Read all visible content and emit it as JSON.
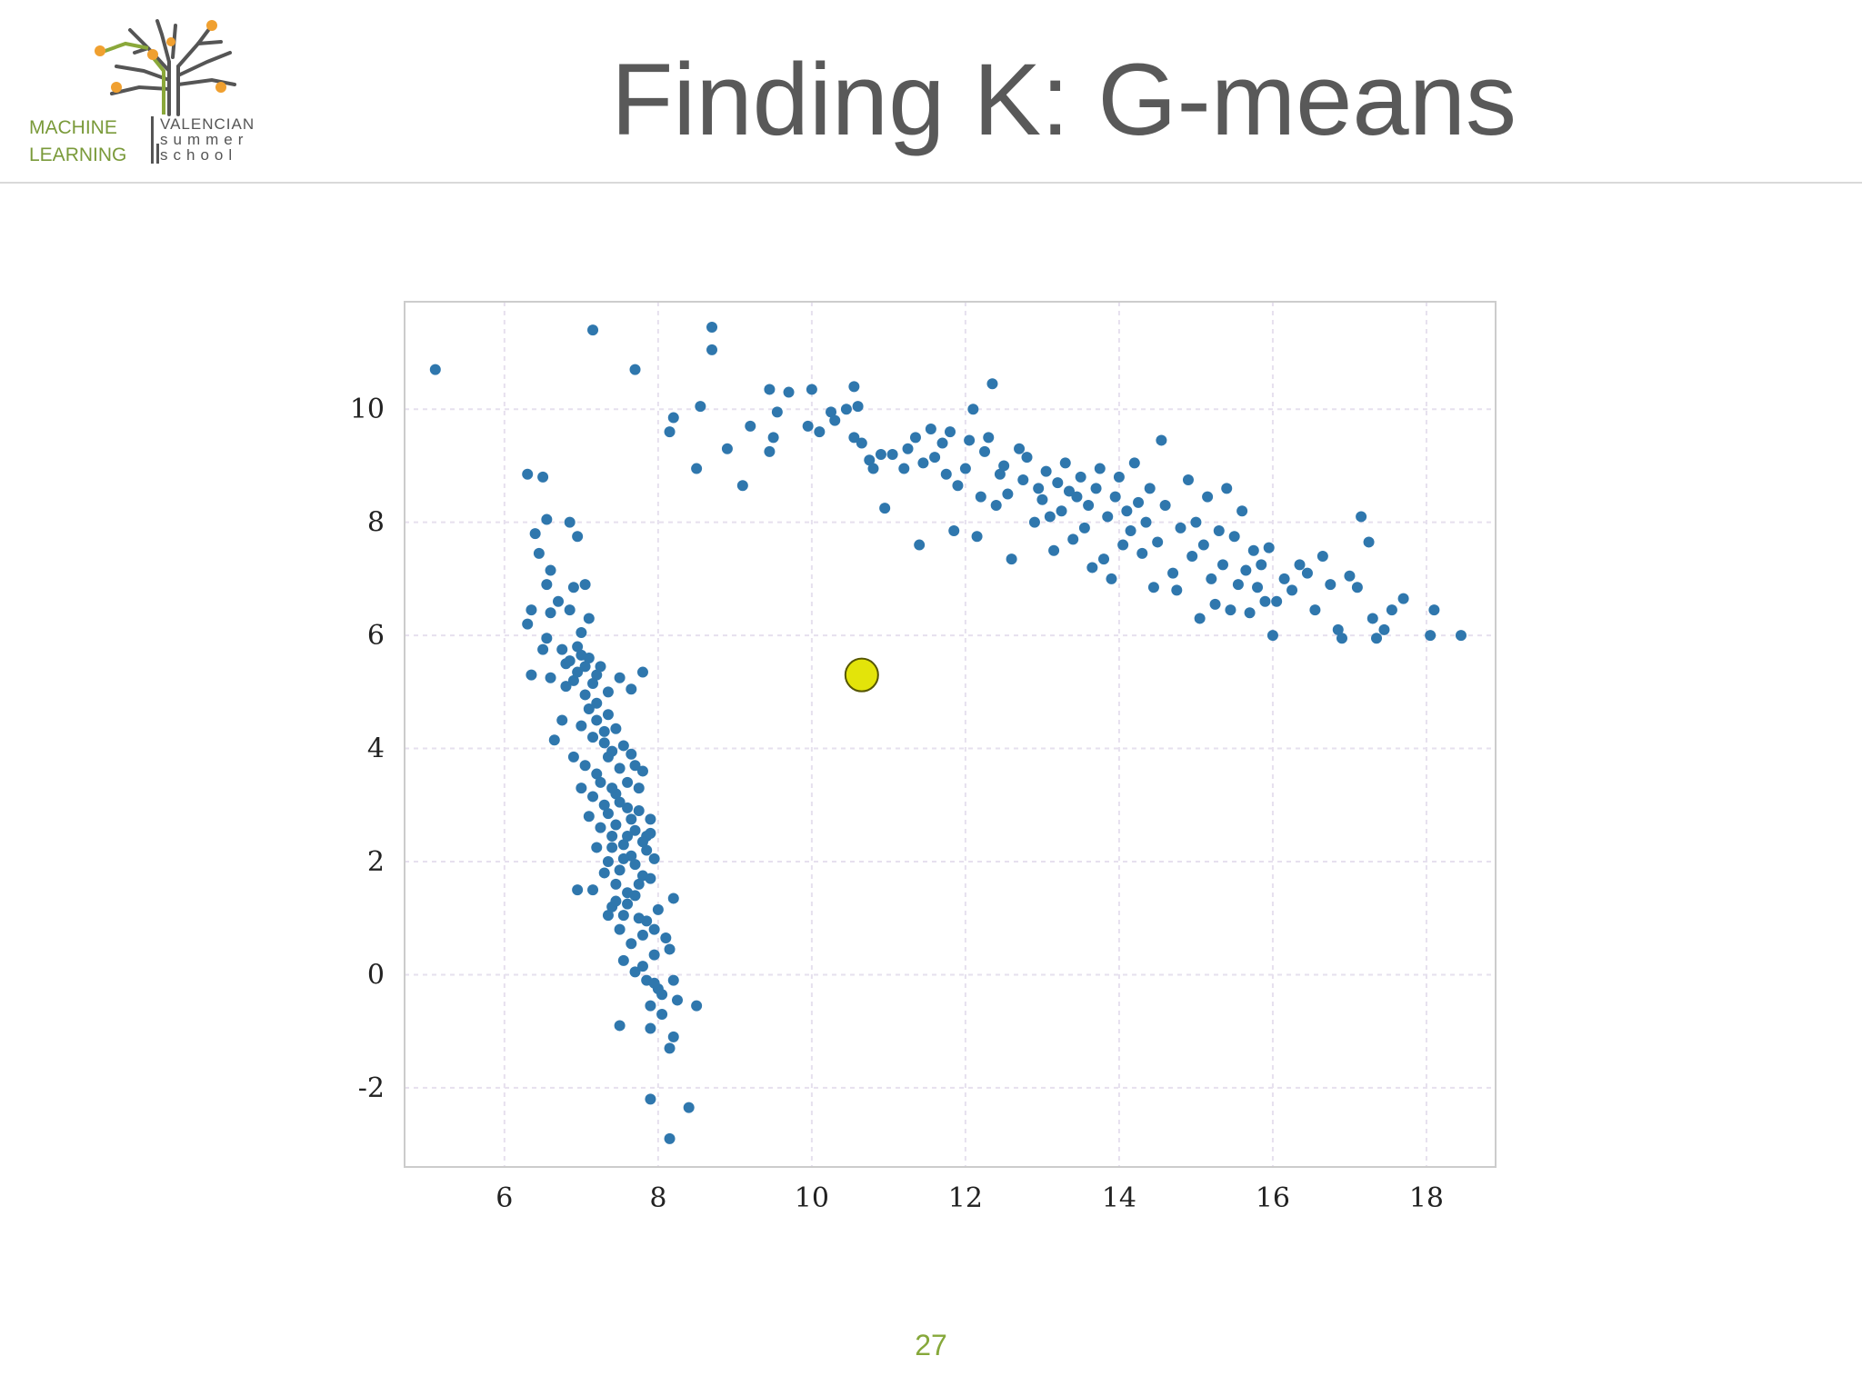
{
  "slide": {
    "title": "Finding K: G-means",
    "page_number": "27"
  },
  "logo": {
    "line1": "MACHINE",
    "line2": "LEARNING",
    "right1": "VALENCIAN",
    "right2": "summer",
    "right3": "school"
  },
  "colors": {
    "point": "#2f77ad",
    "center_fill": "#e3e40a",
    "center_stroke": "#555500",
    "title": "#595959",
    "page_number": "#86a83a"
  },
  "chart_data": {
    "type": "scatter",
    "title": "",
    "xlabel": "",
    "ylabel": "",
    "xlim": [
      4.7,
      18.9
    ],
    "ylim": [
      -3.4,
      11.9
    ],
    "xticks": [
      "6",
      "8",
      "10",
      "12",
      "14",
      "16",
      "18"
    ],
    "yticks": [
      "-2",
      "0",
      "2",
      "4",
      "6",
      "8",
      "10"
    ],
    "grid": true,
    "series": [
      {
        "marker": "dot",
        "color": "#2f77ad",
        "points": [
          [
            5.1,
            10.7
          ],
          [
            7.15,
            11.4
          ],
          [
            7.7,
            10.7
          ],
          [
            8.7,
            11.45
          ],
          [
            8.7,
            11.05
          ],
          [
            8.2,
            9.85
          ],
          [
            8.15,
            9.6
          ],
          [
            8.55,
            10.05
          ],
          [
            8.5,
            8.95
          ],
          [
            8.9,
            9.3
          ],
          [
            9.1,
            8.65
          ],
          [
            9.2,
            9.7
          ],
          [
            9.45,
            9.25
          ],
          [
            9.5,
            9.5
          ],
          [
            9.45,
            10.35
          ],
          [
            9.55,
            9.95
          ],
          [
            9.7,
            10.3
          ],
          [
            9.95,
            9.7
          ],
          [
            10.0,
            10.35
          ],
          [
            10.1,
            9.6
          ],
          [
            10.25,
            9.95
          ],
          [
            10.3,
            9.8
          ],
          [
            10.45,
            10.0
          ],
          [
            10.55,
            10.4
          ],
          [
            10.6,
            10.05
          ],
          [
            10.55,
            9.5
          ],
          [
            10.65,
            9.4
          ],
          [
            10.75,
            9.1
          ],
          [
            10.8,
            8.95
          ],
          [
            10.9,
            9.2
          ],
          [
            10.95,
            8.25
          ],
          [
            11.05,
            9.2
          ],
          [
            11.2,
            8.95
          ],
          [
            11.25,
            9.3
          ],
          [
            11.35,
            9.5
          ],
          [
            11.4,
            7.6
          ],
          [
            11.45,
            9.05
          ],
          [
            11.55,
            9.65
          ],
          [
            11.6,
            9.15
          ],
          [
            11.7,
            9.4
          ],
          [
            11.75,
            8.85
          ],
          [
            11.8,
            9.6
          ],
          [
            11.85,
            7.85
          ],
          [
            11.9,
            8.65
          ],
          [
            12.0,
            8.95
          ],
          [
            12.05,
            9.45
          ],
          [
            12.1,
            10.0
          ],
          [
            12.15,
            7.75
          ],
          [
            12.2,
            8.45
          ],
          [
            12.25,
            9.25
          ],
          [
            12.3,
            9.5
          ],
          [
            12.35,
            10.45
          ],
          [
            12.4,
            8.3
          ],
          [
            12.45,
            8.85
          ],
          [
            12.5,
            9.0
          ],
          [
            12.55,
            8.5
          ],
          [
            12.6,
            7.35
          ],
          [
            12.7,
            9.3
          ],
          [
            12.75,
            8.75
          ],
          [
            12.8,
            9.15
          ],
          [
            12.9,
            8.0
          ],
          [
            12.95,
            8.6
          ],
          [
            13.0,
            8.4
          ],
          [
            13.05,
            8.9
          ],
          [
            13.1,
            8.1
          ],
          [
            13.15,
            7.5
          ],
          [
            13.2,
            8.7
          ],
          [
            13.25,
            8.2
          ],
          [
            13.3,
            9.05
          ],
          [
            13.35,
            8.55
          ],
          [
            13.4,
            7.7
          ],
          [
            13.45,
            8.45
          ],
          [
            13.5,
            8.8
          ],
          [
            13.55,
            7.9
          ],
          [
            13.6,
            8.3
          ],
          [
            13.65,
            7.2
          ],
          [
            13.7,
            8.6
          ],
          [
            13.75,
            8.95
          ],
          [
            13.8,
            7.35
          ],
          [
            13.85,
            8.1
          ],
          [
            13.9,
            7.0
          ],
          [
            13.95,
            8.45
          ],
          [
            14.0,
            8.8
          ],
          [
            14.05,
            7.6
          ],
          [
            14.1,
            8.2
          ],
          [
            14.15,
            7.85
          ],
          [
            14.2,
            9.05
          ],
          [
            14.25,
            8.35
          ],
          [
            14.3,
            7.45
          ],
          [
            14.35,
            8.0
          ],
          [
            14.4,
            8.6
          ],
          [
            14.45,
            6.85
          ],
          [
            14.5,
            7.65
          ],
          [
            14.55,
            9.45
          ],
          [
            14.6,
            8.3
          ],
          [
            14.7,
            7.1
          ],
          [
            14.75,
            6.8
          ],
          [
            14.8,
            7.9
          ],
          [
            14.9,
            8.75
          ],
          [
            14.95,
            7.4
          ],
          [
            15.0,
            8.0
          ],
          [
            15.05,
            6.3
          ],
          [
            15.1,
            7.6
          ],
          [
            15.15,
            8.45
          ],
          [
            15.2,
            7.0
          ],
          [
            15.25,
            6.55
          ],
          [
            15.3,
            7.85
          ],
          [
            15.35,
            7.25
          ],
          [
            15.4,
            8.6
          ],
          [
            15.45,
            6.45
          ],
          [
            15.5,
            7.75
          ],
          [
            15.55,
            6.9
          ],
          [
            15.6,
            8.2
          ],
          [
            15.65,
            7.15
          ],
          [
            15.7,
            6.4
          ],
          [
            15.75,
            7.5
          ],
          [
            15.8,
            6.85
          ],
          [
            15.85,
            7.25
          ],
          [
            15.9,
            6.6
          ],
          [
            15.95,
            7.55
          ],
          [
            16.0,
            6.0
          ],
          [
            16.05,
            6.6
          ],
          [
            16.15,
            7.0
          ],
          [
            16.25,
            6.8
          ],
          [
            16.35,
            7.25
          ],
          [
            16.45,
            7.1
          ],
          [
            16.55,
            6.45
          ],
          [
            16.65,
            7.4
          ],
          [
            16.75,
            6.9
          ],
          [
            16.85,
            6.1
          ],
          [
            16.9,
            5.95
          ],
          [
            17.0,
            7.05
          ],
          [
            17.1,
            6.85
          ],
          [
            17.15,
            8.1
          ],
          [
            17.25,
            7.65
          ],
          [
            17.3,
            6.3
          ],
          [
            17.35,
            5.95
          ],
          [
            17.45,
            6.1
          ],
          [
            17.55,
            6.45
          ],
          [
            17.7,
            6.65
          ],
          [
            18.05,
            6.0
          ],
          [
            18.1,
            6.45
          ],
          [
            18.45,
            6.0
          ],
          [
            6.3,
            8.85
          ],
          [
            6.5,
            8.8
          ],
          [
            6.55,
            8.05
          ],
          [
            6.4,
            7.8
          ],
          [
            6.85,
            8.0
          ],
          [
            6.95,
            7.75
          ],
          [
            6.45,
            7.45
          ],
          [
            6.6,
            7.15
          ],
          [
            6.55,
            6.9
          ],
          [
            6.7,
            6.6
          ],
          [
            6.9,
            6.85
          ],
          [
            7.05,
            6.9
          ],
          [
            6.35,
            6.45
          ],
          [
            6.6,
            6.4
          ],
          [
            6.3,
            6.2
          ],
          [
            6.85,
            6.45
          ],
          [
            7.1,
            6.3
          ],
          [
            7.0,
            6.05
          ],
          [
            6.5,
            5.75
          ],
          [
            6.8,
            5.5
          ],
          [
            6.95,
            5.8
          ],
          [
            7.1,
            5.6
          ],
          [
            7.2,
            5.3
          ],
          [
            6.35,
            5.3
          ],
          [
            6.6,
            5.25
          ],
          [
            6.9,
            5.2
          ],
          [
            7.05,
            4.95
          ],
          [
            7.2,
            4.8
          ],
          [
            7.35,
            4.6
          ],
          [
            7.5,
            5.25
          ],
          [
            7.65,
            5.05
          ],
          [
            7.8,
            5.35
          ],
          [
            6.75,
            4.5
          ],
          [
            7.0,
            4.4
          ],
          [
            7.15,
            4.2
          ],
          [
            7.3,
            4.1
          ],
          [
            7.45,
            4.35
          ],
          [
            6.65,
            4.15
          ],
          [
            6.9,
            3.85
          ],
          [
            7.05,
            3.7
          ],
          [
            7.2,
            3.55
          ],
          [
            7.35,
            3.85
          ],
          [
            7.5,
            3.65
          ],
          [
            7.65,
            3.9
          ],
          [
            7.8,
            3.6
          ],
          [
            7.0,
            3.3
          ],
          [
            7.15,
            3.15
          ],
          [
            7.3,
            3.0
          ],
          [
            7.45,
            3.2
          ],
          [
            7.6,
            2.95
          ],
          [
            7.75,
            3.3
          ],
          [
            7.9,
            2.75
          ],
          [
            7.1,
            2.8
          ],
          [
            7.25,
            2.6
          ],
          [
            7.4,
            2.45
          ],
          [
            7.55,
            2.3
          ],
          [
            7.7,
            2.55
          ],
          [
            7.85,
            2.2
          ],
          [
            7.2,
            2.25
          ],
          [
            7.35,
            2.0
          ],
          [
            7.5,
            1.85
          ],
          [
            7.65,
            2.1
          ],
          [
            7.8,
            1.75
          ],
          [
            7.95,
            2.05
          ],
          [
            6.95,
            1.5
          ],
          [
            7.15,
            1.5
          ],
          [
            7.4,
            1.2
          ],
          [
            7.55,
            1.05
          ],
          [
            7.7,
            1.4
          ],
          [
            7.85,
            0.95
          ],
          [
            8.0,
            1.15
          ],
          [
            8.2,
            1.35
          ],
          [
            7.5,
            0.8
          ],
          [
            7.65,
            0.55
          ],
          [
            7.8,
            0.7
          ],
          [
            7.95,
            0.35
          ],
          [
            8.15,
            0.45
          ],
          [
            7.7,
            0.05
          ],
          [
            7.85,
            -0.1
          ],
          [
            8.0,
            -0.25
          ],
          [
            8.2,
            -0.1
          ],
          [
            7.9,
            -0.55
          ],
          [
            8.05,
            -0.7
          ],
          [
            8.25,
            -0.45
          ],
          [
            7.5,
            -0.9
          ],
          [
            7.9,
            -0.95
          ],
          [
            8.2,
            -1.1
          ],
          [
            8.5,
            -0.55
          ],
          [
            8.15,
            -1.3
          ],
          [
            7.9,
            -2.2
          ],
          [
            8.4,
            -2.35
          ],
          [
            8.15,
            -2.9
          ],
          [
            6.55,
            5.95
          ],
          [
            6.75,
            5.75
          ],
          [
            6.85,
            5.55
          ],
          [
            6.95,
            5.35
          ],
          [
            7.05,
            5.45
          ],
          [
            7.15,
            5.15
          ],
          [
            7.25,
            5.45
          ],
          [
            7.35,
            5.0
          ],
          [
            6.8,
            5.1
          ],
          [
            7.0,
            5.65
          ],
          [
            7.1,
            4.7
          ],
          [
            7.2,
            4.5
          ],
          [
            7.3,
            4.3
          ],
          [
            7.4,
            3.95
          ],
          [
            7.55,
            4.05
          ],
          [
            7.6,
            3.4
          ],
          [
            7.7,
            3.7
          ],
          [
            7.25,
            3.4
          ],
          [
            7.4,
            3.3
          ],
          [
            7.5,
            3.05
          ],
          [
            7.65,
            2.75
          ],
          [
            7.75,
            2.9
          ],
          [
            7.85,
            2.45
          ],
          [
            7.35,
            2.85
          ],
          [
            7.45,
            2.65
          ],
          [
            7.6,
            2.45
          ],
          [
            7.9,
            2.5
          ],
          [
            7.4,
            2.25
          ],
          [
            7.55,
            2.05
          ],
          [
            7.7,
            1.95
          ],
          [
            7.8,
            2.35
          ],
          [
            7.3,
            1.8
          ],
          [
            7.45,
            1.6
          ],
          [
            7.6,
            1.45
          ],
          [
            7.75,
            1.6
          ],
          [
            7.9,
            1.7
          ],
          [
            7.35,
            1.05
          ],
          [
            7.45,
            1.3
          ],
          [
            7.6,
            1.25
          ],
          [
            7.75,
            1.0
          ],
          [
            7.95,
            0.8
          ],
          [
            8.1,
            0.65
          ],
          [
            7.55,
            0.25
          ],
          [
            7.8,
            0.15
          ],
          [
            8.05,
            -0.35
          ],
          [
            7.95,
            -0.15
          ]
        ]
      },
      {
        "marker": "center",
        "color": "#e3e40a",
        "points": [
          [
            10.65,
            5.3
          ]
        ]
      }
    ]
  }
}
